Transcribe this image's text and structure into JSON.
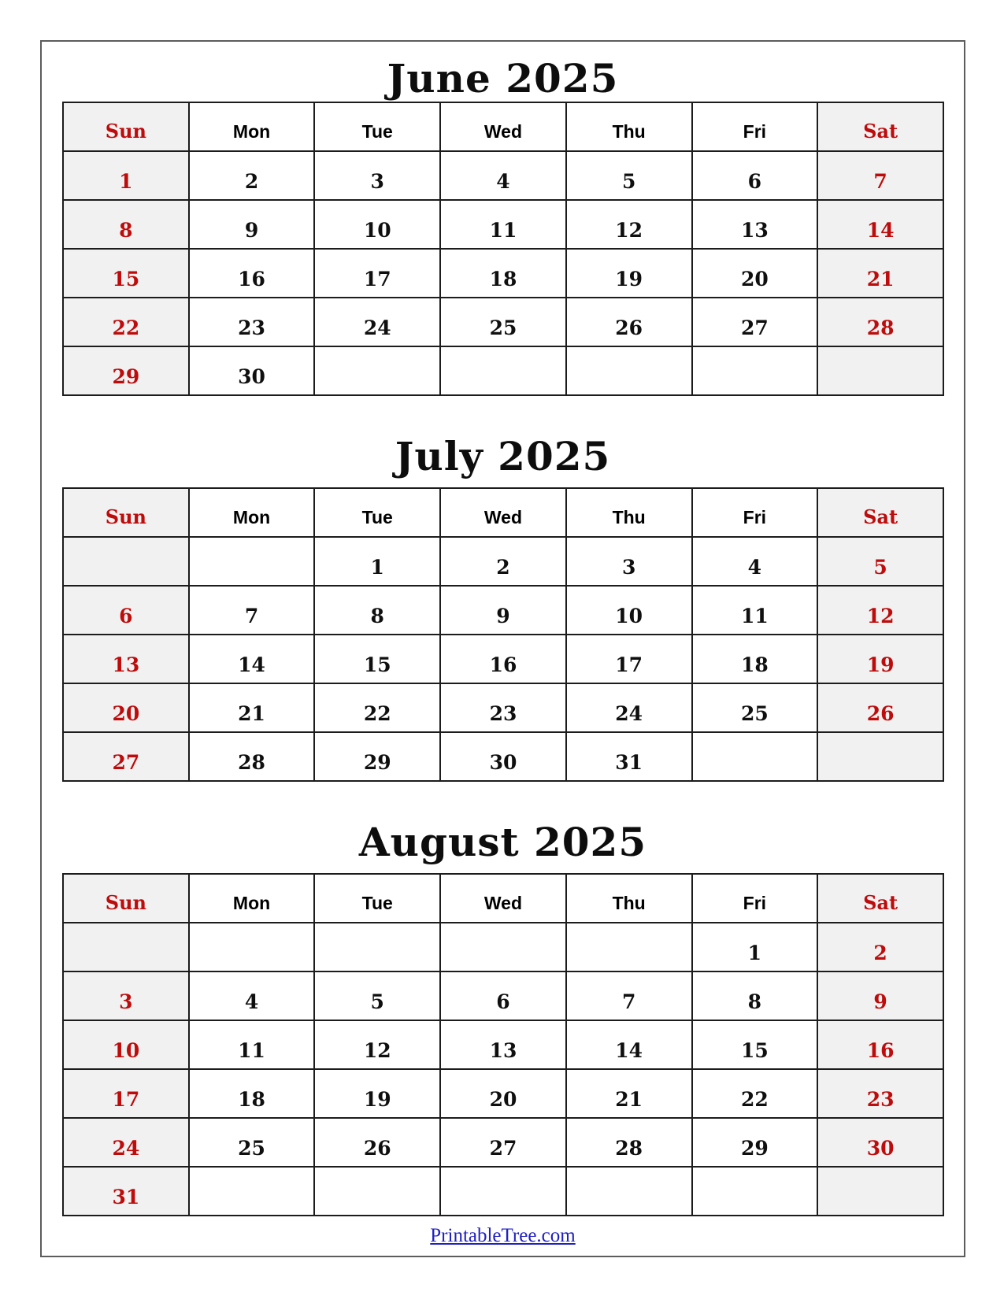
{
  "colors": {
    "accent_red": "#be0b0b",
    "weekend_bg": "#f1f1f1",
    "table_border": "#1c1c1c",
    "link_blue": "#2020c4"
  },
  "weekdays": [
    "Sun",
    "Mon",
    "Tue",
    "Wed",
    "Thu",
    "Fri",
    "Sat"
  ],
  "months": [
    {
      "title": "June 2025",
      "weeks": [
        [
          "1",
          "2",
          "3",
          "4",
          "5",
          "6",
          "7"
        ],
        [
          "8",
          "9",
          "10",
          "11",
          "12",
          "13",
          "14"
        ],
        [
          "15",
          "16",
          "17",
          "18",
          "19",
          "20",
          "21"
        ],
        [
          "22",
          "23",
          "24",
          "25",
          "26",
          "27",
          "28"
        ],
        [
          "29",
          "30",
          "",
          "",
          "",
          "",
          ""
        ]
      ]
    },
    {
      "title": "July 2025",
      "weeks": [
        [
          "",
          "",
          "1",
          "2",
          "3",
          "4",
          "5"
        ],
        [
          "6",
          "7",
          "8",
          "9",
          "10",
          "11",
          "12"
        ],
        [
          "13",
          "14",
          "15",
          "16",
          "17",
          "18",
          "19"
        ],
        [
          "20",
          "21",
          "22",
          "23",
          "24",
          "25",
          "26"
        ],
        [
          "27",
          "28",
          "29",
          "30",
          "31",
          "",
          ""
        ]
      ]
    },
    {
      "title": "August 2025",
      "weeks": [
        [
          "",
          "",
          "",
          "",
          "",
          "1",
          "2"
        ],
        [
          "3",
          "4",
          "5",
          "6",
          "7",
          "8",
          "9"
        ],
        [
          "10",
          "11",
          "12",
          "13",
          "14",
          "15",
          "16"
        ],
        [
          "17",
          "18",
          "19",
          "20",
          "21",
          "22",
          "23"
        ],
        [
          "24",
          "25",
          "26",
          "27",
          "28",
          "29",
          "30"
        ],
        [
          "31",
          "",
          "",
          "",
          "",
          "",
          ""
        ]
      ]
    }
  ],
  "footer": {
    "link_label": "PrintableTree.com"
  }
}
